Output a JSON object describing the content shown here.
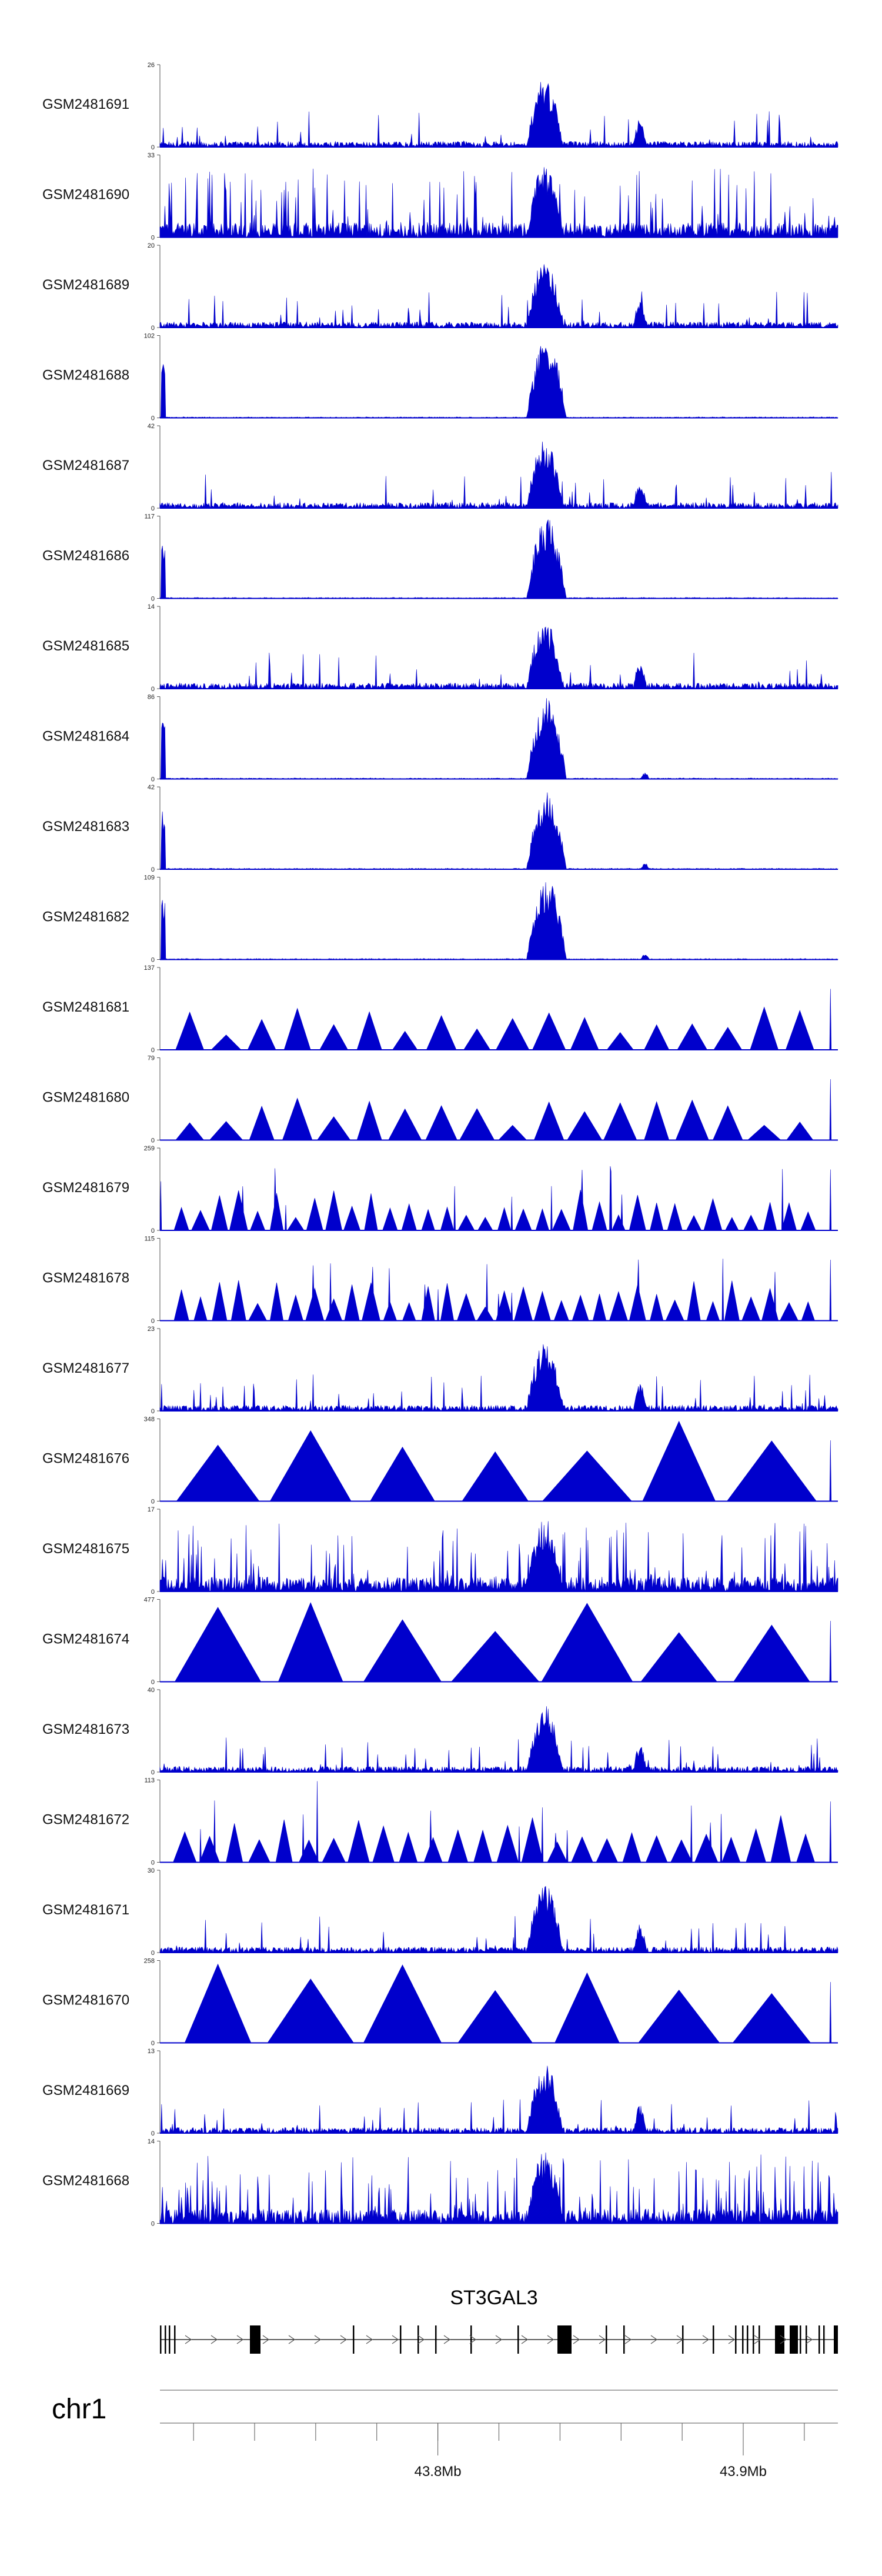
{
  "chart_data": {
    "type": "area",
    "title": "",
    "fill_color": "#0000cc",
    "profile_kinds": [
      "noisy",
      "dense",
      "peak-a",
      "peak-b",
      "tri-sparse",
      "tri-mixed",
      "tri-peak",
      "tri-few"
    ],
    "tracks": [
      {
        "name": "GSM2481691",
        "ymax": 26,
        "kind": "noisy"
      },
      {
        "name": "GSM2481690",
        "ymax": 33,
        "kind": "dense"
      },
      {
        "name": "GSM2481689",
        "ymax": 20,
        "kind": "noisy"
      },
      {
        "name": "GSM2481688",
        "ymax": 102,
        "kind": "peak-a"
      },
      {
        "name": "GSM2481687",
        "ymax": 42,
        "kind": "noisy"
      },
      {
        "name": "GSM2481686",
        "ymax": 117,
        "kind": "peak-a"
      },
      {
        "name": "GSM2481685",
        "ymax": 14,
        "kind": "noisy"
      },
      {
        "name": "GSM2481684",
        "ymax": 86,
        "kind": "peak-b"
      },
      {
        "name": "GSM2481683",
        "ymax": 42,
        "kind": "peak-b"
      },
      {
        "name": "GSM2481682",
        "ymax": 109,
        "kind": "peak-b"
      },
      {
        "name": "GSM2481681",
        "ymax": 137,
        "kind": "tri-sparse"
      },
      {
        "name": "GSM2481680",
        "ymax": 79,
        "kind": "tri-sparse"
      },
      {
        "name": "GSM2481679",
        "ymax": 259,
        "kind": "tri-mixed"
      },
      {
        "name": "GSM2481678",
        "ymax": 115,
        "kind": "tri-mixed"
      },
      {
        "name": "GSM2481677",
        "ymax": 23,
        "kind": "noisy"
      },
      {
        "name": "GSM2481676",
        "ymax": 348,
        "kind": "tri-few"
      },
      {
        "name": "GSM2481675",
        "ymax": 17,
        "kind": "dense"
      },
      {
        "name": "GSM2481674",
        "ymax": 477,
        "kind": "tri-few"
      },
      {
        "name": "GSM2481673",
        "ymax": 40,
        "kind": "noisy"
      },
      {
        "name": "GSM2481672",
        "ymax": 113,
        "kind": "tri-peak"
      },
      {
        "name": "GSM2481671",
        "ymax": 30,
        "kind": "noisy"
      },
      {
        "name": "GSM2481670",
        "ymax": 258,
        "kind": "tri-few"
      },
      {
        "name": "GSM2481669",
        "ymax": 13,
        "kind": "noisy"
      },
      {
        "name": "GSM2481668",
        "ymax": 14,
        "kind": "dense"
      }
    ],
    "ymin_label": "0",
    "gene": {
      "name": "ST3GAL3",
      "strand": "+"
    },
    "chromosome": "chr1",
    "x_axis": {
      "start_mb": 43.709,
      "end_mb": 43.931,
      "ticks": [
        {
          "value": 43.8,
          "label": "43.8Mb"
        },
        {
          "value": 43.9,
          "label": "43.9Mb"
        }
      ]
    }
  }
}
